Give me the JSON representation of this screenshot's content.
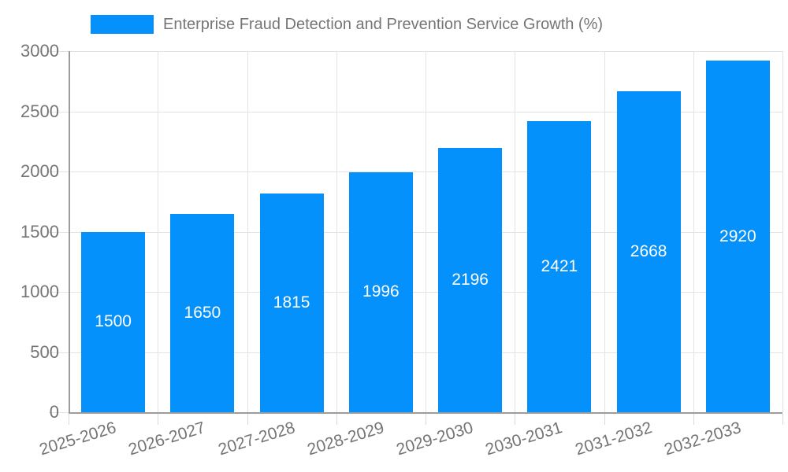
{
  "legend": {
    "label": "Enterprise Fraud Detection and Prevention Service Growth (%)"
  },
  "chart_data": {
    "type": "bar",
    "title": "Enterprise Fraud Detection and Prevention Service Growth (%)",
    "series_name": "Enterprise Fraud Detection and Prevention Service Growth (%)",
    "categories": [
      "2025-2026",
      "2026-2027",
      "2027-2028",
      "2028-2029",
      "2029-2030",
      "2030-2031",
      "2031-2032",
      "2032-2033"
    ],
    "values": [
      1500,
      1650,
      1815,
      1996,
      2196,
      2421,
      2668,
      2920
    ],
    "xlabel": "",
    "ylabel": "",
    "ylim": [
      0,
      3000
    ],
    "yticks": [
      0,
      500,
      1000,
      1500,
      2000,
      2500,
      3000
    ],
    "grid": true,
    "legend_position": "top",
    "bar_value_labels": "inside-center",
    "colors": {
      "bar": "#0591FB",
      "grid": "#e3e3e3",
      "tick": "#d9d9d9",
      "axis": "#9c9c9c",
      "text": "#757575",
      "bar_label": "#ffffff",
      "background": "#ffffff"
    }
  }
}
